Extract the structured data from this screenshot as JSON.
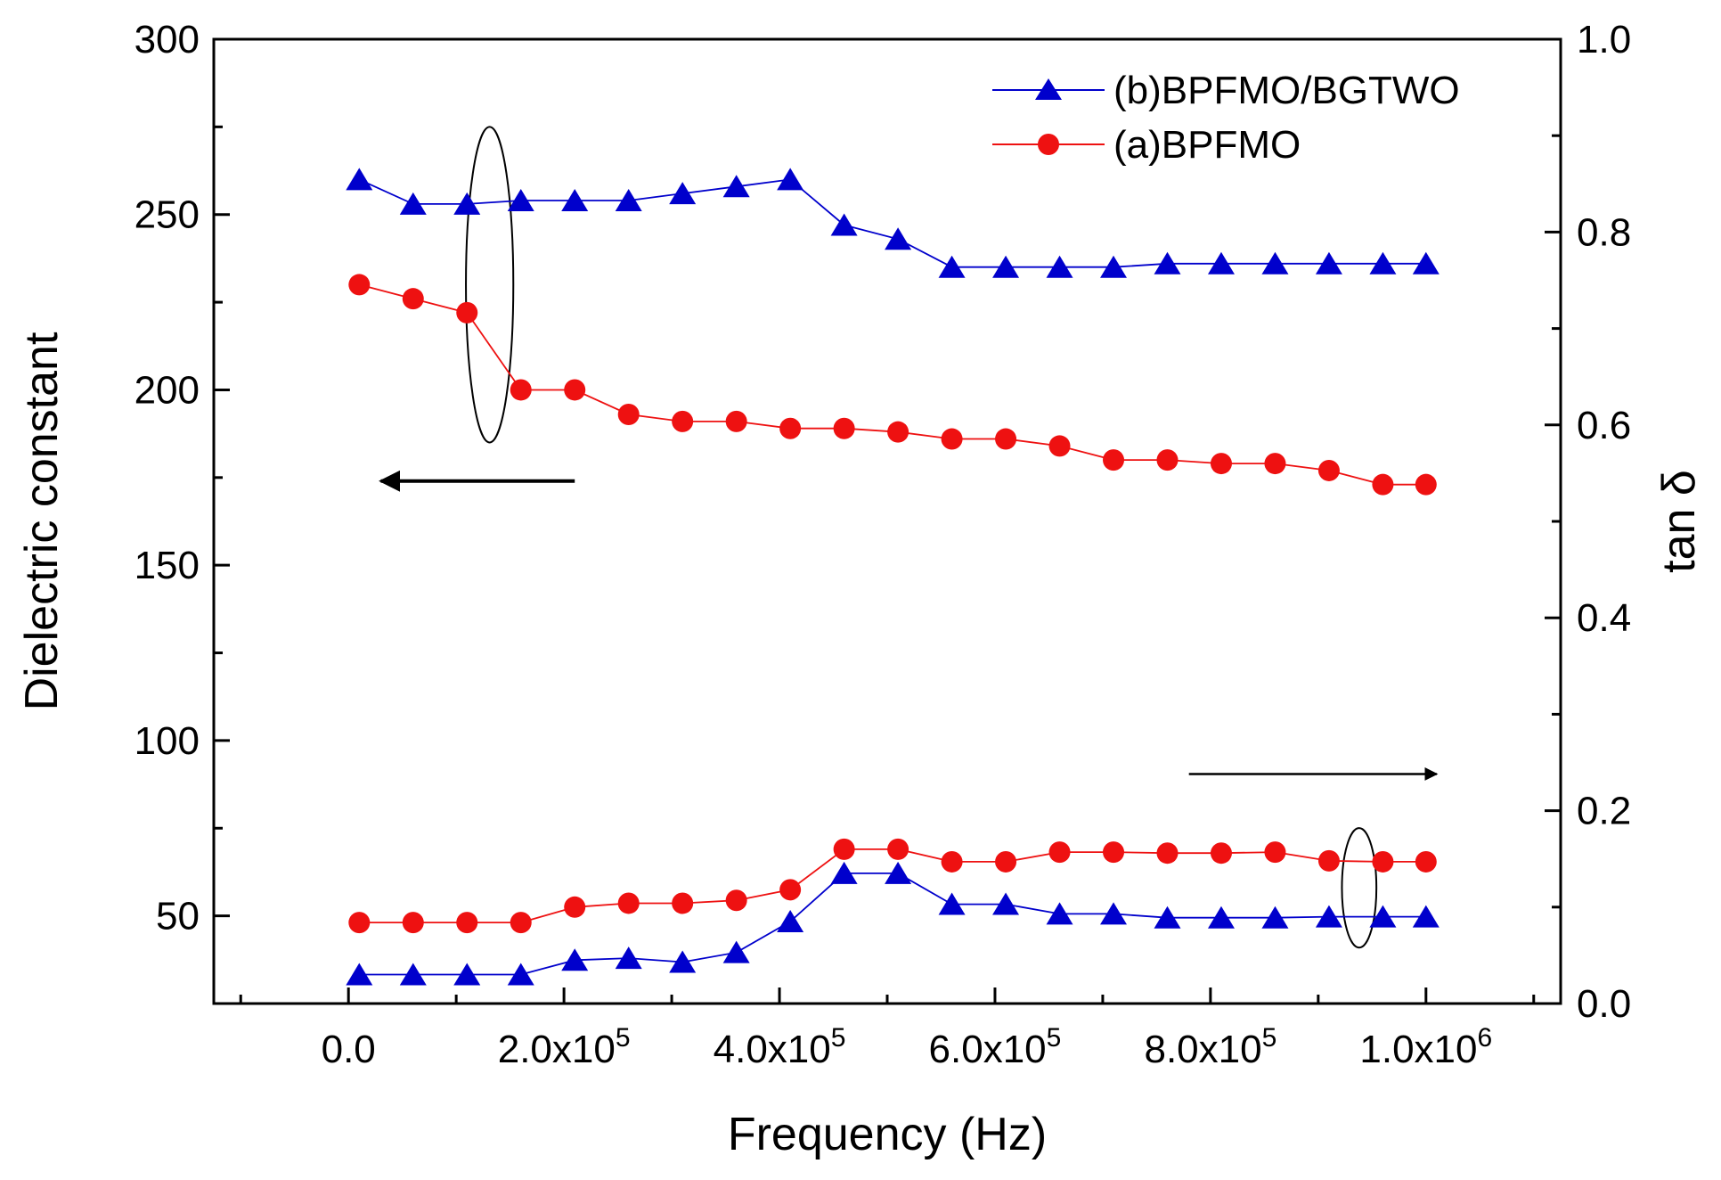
{
  "chart_data": {
    "type": "line",
    "title": "",
    "xlabel": "Frequency (Hz)",
    "ylabel_left": "Dielectric constant",
    "ylabel_right": "tan δ",
    "xlim": [
      -125000,
      1125000
    ],
    "ylim_left": [
      25,
      300
    ],
    "ylim_right": [
      0.0,
      1.0
    ],
    "grid": false,
    "legend_position": "top-right",
    "x_ticks": [
      {
        "value": 0,
        "mantissa": "0.0",
        "exponent": ""
      },
      {
        "value": 200000,
        "mantissa": "2.0x10",
        "exponent": "5"
      },
      {
        "value": 400000,
        "mantissa": "4.0x10",
        "exponent": "5"
      },
      {
        "value": 600000,
        "mantissa": "6.0x10",
        "exponent": "5"
      },
      {
        "value": 800000,
        "mantissa": "8.0x10",
        "exponent": "5"
      },
      {
        "value": 1000000,
        "mantissa": "1.0x10",
        "exponent": "6"
      }
    ],
    "y_left_ticks": [
      {
        "value": 50,
        "label": "50"
      },
      {
        "value": 100,
        "label": "100"
      },
      {
        "value": 150,
        "label": "150"
      },
      {
        "value": 200,
        "label": "200"
      },
      {
        "value": 250,
        "label": "250"
      },
      {
        "value": 300,
        "label": "300"
      }
    ],
    "y_right_ticks": [
      {
        "value": 0.0,
        "label": "0.0"
      },
      {
        "value": 0.2,
        "label": "0.2"
      },
      {
        "value": 0.4,
        "label": "0.4"
      },
      {
        "value": 0.6,
        "label": "0.6"
      },
      {
        "value": 0.8,
        "label": "0.8"
      },
      {
        "value": 1.0,
        "label": "1.0"
      }
    ],
    "x": [
      10000,
      60000,
      110000,
      160000,
      210000,
      260000,
      310000,
      360000,
      410000,
      460000,
      510000,
      560000,
      610000,
      660000,
      710000,
      760000,
      810000,
      860000,
      910000,
      960000,
      1000000
    ],
    "series": [
      {
        "name": "(b)BPFMO/BGTWO",
        "quantity": "Dielectric constant",
        "axis": "left",
        "color": "#0000cc",
        "marker": "triangle",
        "values": [
          260,
          253,
          253,
          254,
          254,
          254,
          256,
          258,
          260,
          247,
          243,
          235,
          235,
          235,
          235,
          236,
          236,
          236,
          236,
          236,
          236
        ]
      },
      {
        "name": "(a)BPFMO",
        "quantity": "Dielectric constant",
        "axis": "left",
        "color": "#ee1111",
        "marker": "circle",
        "values": [
          230,
          226,
          222,
          200,
          200,
          193,
          191,
          191,
          189,
          189,
          188,
          186,
          186,
          184,
          180,
          180,
          179,
          179,
          177,
          173,
          173
        ]
      },
      {
        "name": "(b)BPFMO/BGTWO",
        "quantity": "tan δ",
        "axis": "right",
        "color": "#0000cc",
        "marker": "triangle",
        "values": [
          0.03,
          0.03,
          0.03,
          0.03,
          0.045,
          0.047,
          0.043,
          0.053,
          0.085,
          0.135,
          0.135,
          0.103,
          0.103,
          0.093,
          0.093,
          0.089,
          0.089,
          0.089,
          0.09,
          0.09,
          0.09
        ]
      },
      {
        "name": "(a)BPFMO",
        "quantity": "tan δ",
        "axis": "right",
        "color": "#ee1111",
        "marker": "circle",
        "values": [
          0.084,
          0.084,
          0.084,
          0.084,
          0.1,
          0.104,
          0.104,
          0.107,
          0.118,
          0.16,
          0.16,
          0.147,
          0.147,
          0.157,
          0.157,
          0.156,
          0.156,
          0.157,
          0.148,
          0.147,
          0.147
        ]
      }
    ],
    "annotations": [
      {
        "type": "ellipse",
        "marks": "left-axis curves",
        "x_center": 131000,
        "y_center": 230,
        "x_radius": 22000,
        "y_radius": 45,
        "axis": "left"
      },
      {
        "type": "arrow",
        "direction": "left",
        "meaning": "left axis",
        "x_from": 210000,
        "x_to": 30000,
        "y": 174,
        "axis": "left"
      },
      {
        "type": "ellipse",
        "marks": "right-axis curves",
        "x_center": 938000,
        "y_center": 0.12,
        "x_radius": 16000,
        "y_radius": 0.062,
        "axis": "right"
      },
      {
        "type": "arrow",
        "direction": "right",
        "meaning": "right axis",
        "x_from": 780000,
        "x_to": 1010000,
        "y": 0.238,
        "axis": "right"
      }
    ]
  }
}
